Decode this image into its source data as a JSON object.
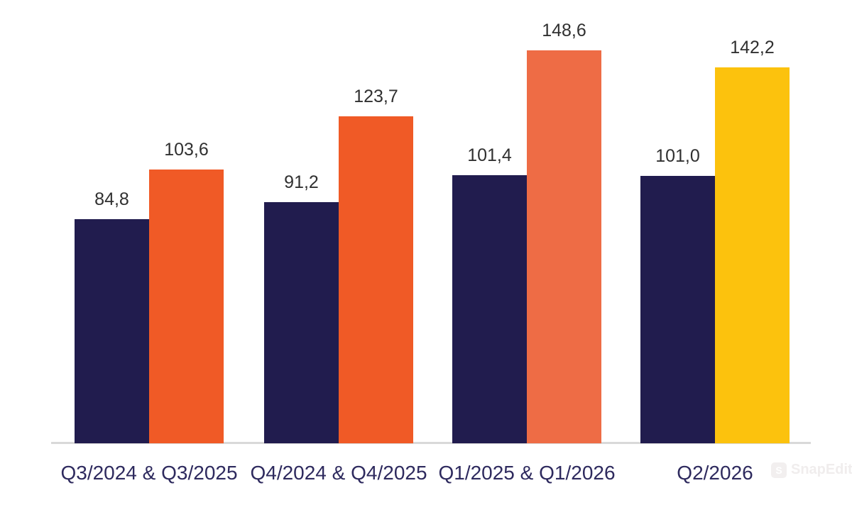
{
  "chart_data": {
    "type": "bar",
    "title": "",
    "decimal_separator": ",",
    "categories": [
      "Q3/2024 & Q3/2025",
      "Q4/2024 & Q4/2025",
      "Q1/2025 & Q1/2026",
      "Q2/2026"
    ],
    "series": [
      {
        "name": "first-period",
        "values": [
          84.8,
          91.2,
          101.4,
          101.0
        ]
      },
      {
        "name": "second-period",
        "values": [
          103.6,
          123.7,
          148.6,
          142.2
        ]
      }
    ],
    "groups": [
      {
        "category": "Q3/2024 & Q3/2025",
        "bars": [
          {
            "value": 84.8,
            "label": "84,8",
            "color": "#211c4e"
          },
          {
            "value": 103.6,
            "label": "103,6",
            "color": "#f05a26"
          }
        ]
      },
      {
        "category": "Q4/2024 & Q4/2025",
        "bars": [
          {
            "value": 91.2,
            "label": "91,2",
            "color": "#211c4e"
          },
          {
            "value": 123.7,
            "label": "123,7",
            "color": "#f05a26"
          }
        ]
      },
      {
        "category": "Q1/2025 & Q1/2026",
        "bars": [
          {
            "value": 101.4,
            "label": "101,4",
            "color": "#211c4e"
          },
          {
            "value": 148.6,
            "label": "148,6",
            "color": "#ee6c45"
          }
        ]
      },
      {
        "category": "Q2/2026",
        "bars": [
          {
            "value": 101.0,
            "label": "101,0",
            "color": "#211c4e"
          },
          {
            "value": 142.2,
            "label": "142,2",
            "color": "#fcc20d"
          }
        ]
      }
    ],
    "ylim": [
      0,
      160
    ],
    "grid": false,
    "legend": "none",
    "value_labels": "above-bars",
    "colors": {
      "navy": "#211c4e",
      "orange": "#f05a26",
      "light_orange": "#ee6c45",
      "yellow": "#fcc20d",
      "axis_line": "#d9d9d9",
      "value_label_text": "#303030",
      "category_label_text": "#2e2a5e"
    }
  },
  "watermark": {
    "label": "SnapEdit"
  }
}
